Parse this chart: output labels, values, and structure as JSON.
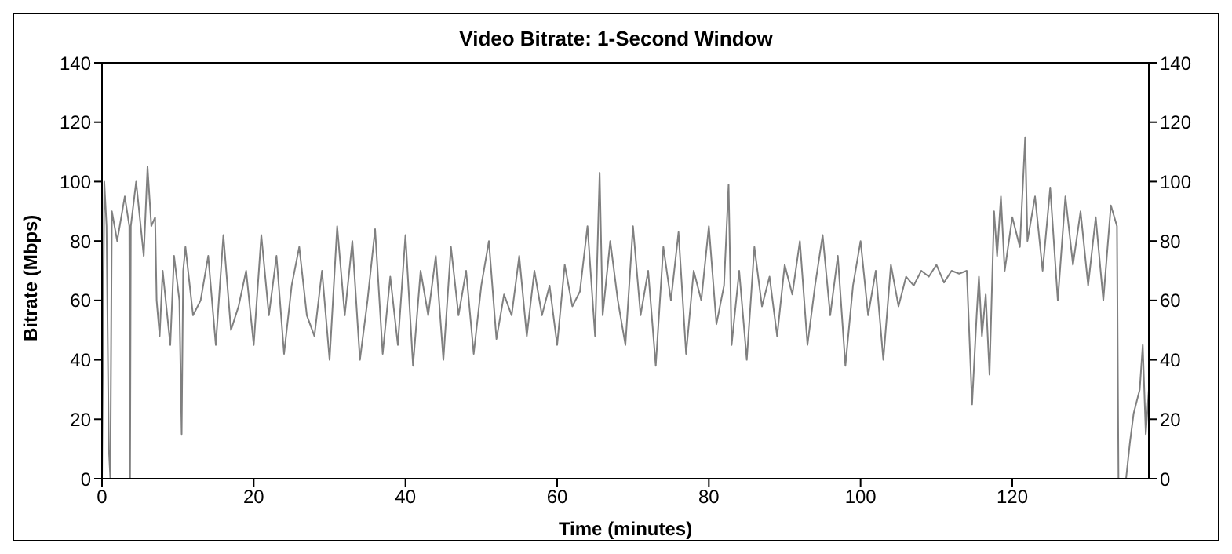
{
  "chart_data": {
    "type": "line",
    "title": "Video Bitrate: 1-Second Window",
    "xlabel": "Time (minutes)",
    "ylabel": "Bitrate (Mbps)",
    "xlim": [
      0,
      138
    ],
    "xticks": [
      0,
      20,
      40,
      60,
      80,
      100,
      120
    ],
    "ylim": [
      0,
      140
    ],
    "yticks": [
      0,
      20,
      40,
      60,
      80,
      100,
      120,
      140
    ],
    "y2lim": [
      0,
      140
    ],
    "y2ticks": [
      0,
      20,
      40,
      60,
      80,
      100,
      120,
      140
    ],
    "grid": false,
    "legend": false,
    "marker": "none",
    "line_style": "solid",
    "series": [
      {
        "color": "#808080",
        "x": [
          0,
          0.3,
          0.6,
          0.9,
          1.1,
          1.3,
          2,
          3,
          3.6,
          3.7,
          3.8,
          4.5,
          5.5,
          6,
          6.5,
          7,
          7.2,
          7.6,
          8,
          9,
          9.5,
          10.2,
          10.5,
          10.7,
          11,
          12,
          13,
          14,
          15,
          16,
          17,
          18,
          19,
          20,
          21,
          22,
          23,
          24,
          25,
          26,
          27,
          28,
          29,
          30,
          31,
          32,
          33,
          34,
          35,
          36,
          37,
          38,
          39,
          40,
          41,
          42,
          43,
          44,
          45,
          46,
          47,
          48,
          49,
          50,
          51,
          52,
          53,
          54,
          55,
          56,
          57,
          58,
          59,
          60,
          61,
          62,
          63,
          64,
          65,
          65.6,
          66,
          67,
          68,
          69,
          70,
          71,
          72,
          73,
          74,
          75,
          76,
          77,
          78,
          79,
          80,
          81,
          82,
          82.6,
          83,
          84,
          85,
          86,
          87,
          88,
          89,
          90,
          91,
          92,
          93,
          94,
          95,
          96,
          97,
          98,
          99,
          100,
          101,
          102,
          103,
          104,
          105,
          106,
          107,
          108,
          109,
          110,
          111,
          112,
          113,
          114,
          114.7,
          115.3,
          115.6,
          116,
          116.5,
          117,
          117.6,
          118,
          118.5,
          119,
          120,
          121,
          121.7,
          122,
          123,
          124,
          125,
          126,
          127,
          128,
          129,
          130,
          131,
          132,
          133,
          133.8,
          134,
          135,
          135.5,
          136,
          136.8,
          137.2,
          137.6,
          138
        ],
        "values": [
          0,
          100,
          85,
          10,
          0,
          90,
          80,
          95,
          85,
          0,
          85,
          100,
          75,
          105,
          85,
          88,
          60,
          48,
          70,
          45,
          75,
          60,
          15,
          70,
          78,
          55,
          60,
          75,
          45,
          82,
          50,
          58,
          70,
          45,
          82,
          55,
          75,
          42,
          65,
          78,
          55,
          48,
          70,
          40,
          85,
          55,
          80,
          40,
          60,
          84,
          42,
          68,
          45,
          82,
          38,
          70,
          55,
          75,
          40,
          78,
          55,
          70,
          42,
          65,
          80,
          47,
          62,
          55,
          75,
          48,
          70,
          55,
          65,
          45,
          72,
          58,
          63,
          85,
          48,
          103,
          55,
          80,
          60,
          45,
          85,
          55,
          70,
          38,
          78,
          60,
          83,
          42,
          70,
          60,
          85,
          52,
          65,
          99,
          45,
          70,
          40,
          78,
          58,
          68,
          48,
          72,
          62,
          80,
          45,
          65,
          82,
          55,
          75,
          38,
          65,
          80,
          55,
          70,
          40,
          72,
          58,
          68,
          65,
          70,
          68,
          72,
          66,
          70,
          69,
          70,
          25,
          55,
          68,
          48,
          62,
          35,
          90,
          75,
          95,
          70,
          88,
          78,
          115,
          80,
          95,
          70,
          98,
          60,
          95,
          72,
          90,
          65,
          88,
          60,
          92,
          85,
          0,
          0,
          12,
          22,
          30,
          45,
          15,
          30
        ]
      }
    ]
  }
}
